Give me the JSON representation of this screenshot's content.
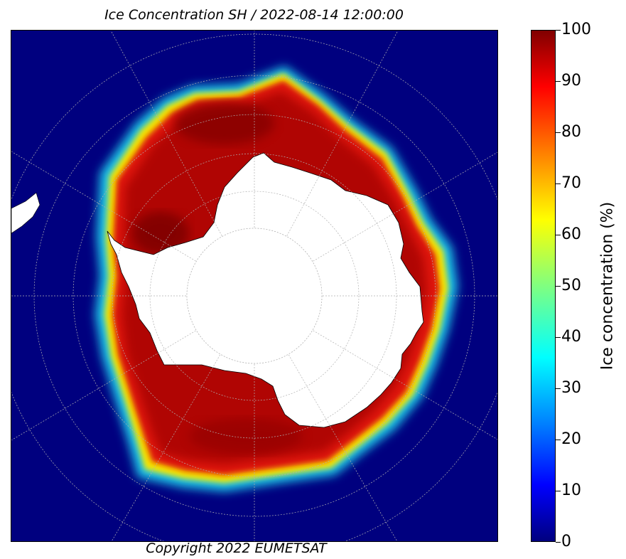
{
  "title": "Ice Concentration SH / 2022-08-14 12:00:00",
  "copyright": "Copyright 2022 EUMETSAT",
  "colorbar": {
    "label": "Ice concentration (%)",
    "ticks": [
      "0",
      "10",
      "20",
      "30",
      "40",
      "50",
      "60",
      "70",
      "80",
      "90",
      "100"
    ],
    "range": [
      0,
      100
    ],
    "colormap": "jet",
    "colors": [
      "#00007f",
      "#0000ff",
      "#0080ff",
      "#00ffff",
      "#80ff80",
      "#ffff00",
      "#ff8000",
      "#ff0000",
      "#800000"
    ]
  },
  "map": {
    "projection": "south polar stereographic",
    "region": "Southern Hemisphere / Antarctica",
    "ocean_color": "#00007f",
    "land_color": "#ffffff",
    "graticule": "dashed gray"
  }
}
